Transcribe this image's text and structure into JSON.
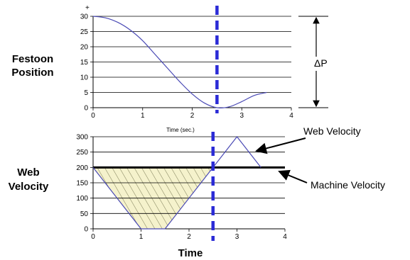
{
  "labels": {
    "top_ylabel": [
      "Festoon",
      "Position"
    ],
    "bottom_ylabel": [
      "Web",
      "Velocity"
    ],
    "top_xlabel": "Time (sec.)",
    "bottom_xlabel": "Time",
    "delta_label": "ΔP",
    "web_velocity_label": "Web Velocity",
    "machine_velocity_label": "Machine Velocity",
    "plus_mark": "+"
  },
  "chart_data": [
    {
      "type": "line",
      "name": "festoon-position",
      "x_ticks": [
        0,
        1,
        2,
        3,
        4
      ],
      "y_ticks": [
        0,
        5,
        10,
        15,
        20,
        25,
        30
      ],
      "xlim": [
        0,
        4
      ],
      "ylim": [
        0,
        30
      ],
      "grid": true,
      "series": [
        {
          "x": [
            0,
            0.25,
            0.5,
            0.75,
            1,
            1.25,
            1.5,
            1.75,
            2,
            2.25,
            2.5,
            2.75,
            3,
            3.25,
            3.5
          ],
          "y": [
            30,
            29.5,
            28,
            25.5,
            22,
            17.5,
            13,
            8.5,
            4.5,
            1.5,
            0,
            0.3,
            2,
            4,
            5
          ],
          "color": "#4a4ab5"
        }
      ],
      "dashed_marker_x": 2.5,
      "delta_annotation": {
        "from": 30,
        "to": 0
      }
    },
    {
      "type": "line",
      "name": "web-velocity",
      "x_ticks": [
        0,
        1,
        2,
        3,
        4
      ],
      "y_ticks": [
        0,
        50,
        100,
        150,
        200,
        250,
        300
      ],
      "xlim": [
        0,
        4
      ],
      "ylim": [
        0,
        300
      ],
      "grid": true,
      "series": [
        {
          "x": [
            0,
            1,
            1.5,
            2.5,
            3,
            3.5
          ],
          "y": [
            200,
            0,
            0,
            200,
            300,
            200
          ],
          "color": "#4a4ab5"
        }
      ],
      "machine_velocity": 200,
      "hatched_region": {
        "x": [
          0,
          1,
          1.5,
          2.5
        ],
        "y": [
          200,
          0,
          0,
          200
        ],
        "fill": "#f5f2cc"
      },
      "dashed_marker_x": 2.5
    }
  ],
  "colors": {
    "curve": "#4a4ab5",
    "marker": "#2b2bd6",
    "hatch": "#7a7a55",
    "fill": "#f5f2cc"
  }
}
